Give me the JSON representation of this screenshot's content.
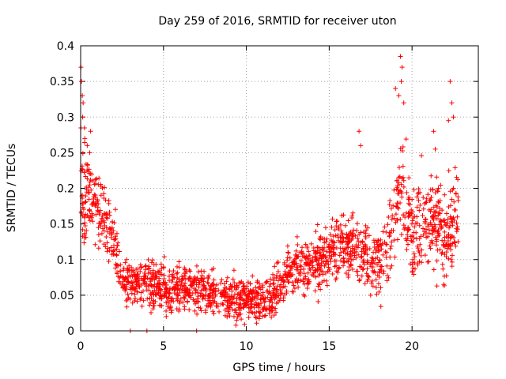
{
  "chart_data": {
    "type": "scatter",
    "title": "Day 259 of 2016, SRMTID for receiver uton",
    "xlabel": "GPS time / hours",
    "ylabel": "SRMTID / TECUs",
    "xlim": [
      0,
      24
    ],
    "ylim": [
      0,
      0.4
    ],
    "x_ticks": [
      0,
      5,
      10,
      15,
      20
    ],
    "x_tick_labels": [
      "0",
      "5",
      "10",
      "15",
      "20"
    ],
    "y_ticks": [
      0,
      0.05,
      0.1,
      0.15,
      0.2,
      0.25,
      0.3,
      0.35,
      0.4
    ],
    "y_tick_labels": [
      "0",
      "0.05",
      "0.1",
      "0.15",
      "0.2",
      "0.25",
      "0.3",
      "0.35",
      "0.4"
    ],
    "grid": true,
    "marker": "+",
    "series_color": "#ff0000",
    "trend_anchors": {
      "x": [
        0,
        0.5,
        1,
        1.5,
        2,
        2.5,
        3,
        4,
        5,
        6,
        7,
        8,
        9,
        10,
        11,
        11.7,
        12.5,
        13.5,
        14.5,
        15.5,
        16.5,
        17.5,
        18.5,
        19.3,
        20,
        20.7,
        21.3,
        22,
        22.8
      ],
      "y": [
        0.2,
        0.19,
        0.17,
        0.16,
        0.13,
        0.07,
        0.07,
        0.07,
        0.06,
        0.06,
        0.06,
        0.05,
        0.045,
        0.045,
        0.04,
        0.05,
        0.08,
        0.09,
        0.1,
        0.12,
        0.12,
        0.1,
        0.11,
        0.2,
        0.14,
        0.15,
        0.16,
        0.12,
        0.17
      ]
    },
    "spread_anchors": {
      "x": [
        0,
        1,
        2,
        3,
        6,
        9,
        12,
        15,
        18,
        19.5,
        21,
        22.8
      ],
      "y": [
        0.08,
        0.05,
        0.04,
        0.03,
        0.03,
        0.025,
        0.03,
        0.04,
        0.05,
        0.07,
        0.06,
        0.06
      ]
    },
    "x_start": 0,
    "x_end": 22.8,
    "point_count": 1900,
    "outliers": [
      {
        "x": 0.02,
        "y": 0.37
      },
      {
        "x": 0.05,
        "y": 0.35
      },
      {
        "x": 0.1,
        "y": 0.33
      },
      {
        "x": 0.15,
        "y": 0.32
      },
      {
        "x": 0.12,
        "y": 0.3
      },
      {
        "x": 0.25,
        "y": 0.27
      },
      {
        "x": 0.4,
        "y": 0.26
      },
      {
        "x": 0.6,
        "y": 0.28
      },
      {
        "x": 0.55,
        "y": 0.25
      },
      {
        "x": 3.0,
        "y": 0.0
      },
      {
        "x": 4.0,
        "y": 0.0
      },
      {
        "x": 7.0,
        "y": 0.0
      },
      {
        "x": 19.3,
        "y": 0.385
      },
      {
        "x": 19.4,
        "y": 0.37
      },
      {
        "x": 19.35,
        "y": 0.35
      },
      {
        "x": 19.2,
        "y": 0.33
      },
      {
        "x": 19.0,
        "y": 0.34
      },
      {
        "x": 19.5,
        "y": 0.32
      },
      {
        "x": 22.3,
        "y": 0.35
      },
      {
        "x": 22.4,
        "y": 0.32
      },
      {
        "x": 22.2,
        "y": 0.295
      },
      {
        "x": 22.5,
        "y": 0.3
      },
      {
        "x": 21.3,
        "y": 0.28
      },
      {
        "x": 21.4,
        "y": 0.255
      },
      {
        "x": 16.8,
        "y": 0.28
      },
      {
        "x": 16.9,
        "y": 0.26
      },
      {
        "x": 17.5,
        "y": 0.05
      },
      {
        "x": 17.6,
        "y": 0.07
      },
      {
        "x": 21.5,
        "y": 0.063
      }
    ]
  }
}
